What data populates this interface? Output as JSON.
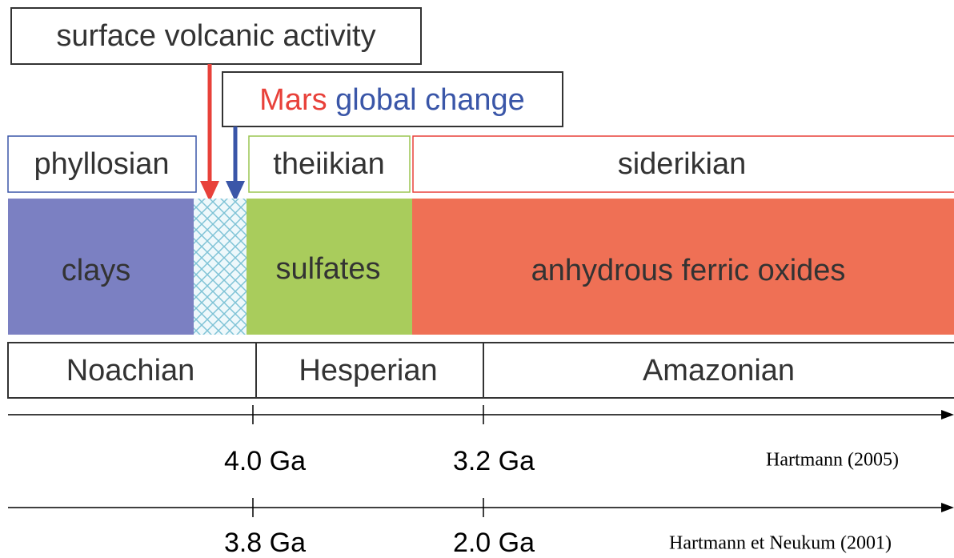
{
  "annotations": {
    "volcanic": "surface volcanic activity",
    "change": {
      "part1": "Mars",
      "part2": "global change"
    }
  },
  "eons": [
    "phyllosian",
    "theiikian",
    "siderikian"
  ],
  "minerals": [
    "clays",
    "sulfates",
    "anhydrous ferric oxides"
  ],
  "periods": [
    "Noachian",
    "Hesperian",
    "Amazonian"
  ],
  "timescales": [
    {
      "source": "Hartmann (2005)",
      "ticks": [
        "4.0 Ga",
        "3.2 Ga"
      ]
    },
    {
      "source": "Hartmann et Neukum (2001)",
      "ticks": [
        "3.8 Ga",
        "2.0 Ga"
      ]
    }
  ]
}
